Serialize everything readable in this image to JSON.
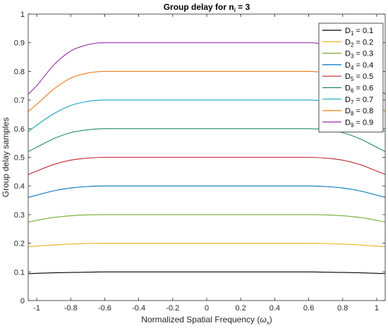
{
  "chart_data": {
    "type": "line",
    "title_text": "Group delay for n",
    "title_sub": "i",
    "title_suffix": " = 3",
    "xlabel_text": "Normalized Spatial Frequency (",
    "xlabel_symbol": "ω",
    "xlabel_sub": "x",
    "xlabel_suffix": ")",
    "ylabel": "Group delay samples",
    "xlim": [
      -1.05,
      1.05
    ],
    "ylim": [
      0,
      1
    ],
    "xticks": [
      "-1",
      "-0.8",
      "-0.6",
      "-0.4",
      "-0.2",
      "0",
      "0.2",
      "0.4",
      "0.6",
      "0.8",
      "1"
    ],
    "xtick_values": [
      -1,
      -0.8,
      -0.6,
      -0.4,
      -0.2,
      0,
      0.2,
      0.4,
      0.6,
      0.8,
      1
    ],
    "yticks": [
      "0",
      "0.1",
      "0.2",
      "0.3",
      "0.4",
      "0.5",
      "0.6",
      "0.7",
      "0.8",
      "0.9",
      "1"
    ],
    "ytick_values": [
      0,
      0.1,
      0.2,
      0.3,
      0.4,
      0.5,
      0.6,
      0.7,
      0.8,
      0.9,
      1
    ],
    "grid": false,
    "legend_position": "top-right",
    "x": [
      -1.05,
      -1.0,
      -0.9,
      -0.8,
      -0.7,
      -0.6,
      -0.5,
      -0.4,
      -0.2,
      0,
      0.2,
      0.4,
      0.5,
      0.6,
      0.7,
      0.8,
      0.9,
      1.0,
      1.05
    ],
    "series": [
      {
        "name": "D",
        "sub": "1",
        "label_value": " = 0.1",
        "color": "#000000",
        "values": [
          0.094,
          0.095,
          0.097,
          0.098,
          0.099,
          0.1,
          0.1,
          0.1,
          0.1,
          0.1,
          0.1,
          0.1,
          0.1,
          0.1,
          0.099,
          0.098,
          0.097,
          0.095,
          0.094
        ]
      },
      {
        "name": "D",
        "sub": "2",
        "label_value": " = 0.2",
        "color": "#EDB120",
        "values": [
          0.188,
          0.19,
          0.194,
          0.197,
          0.199,
          0.2,
          0.2,
          0.2,
          0.2,
          0.2,
          0.2,
          0.2,
          0.2,
          0.2,
          0.199,
          0.197,
          0.194,
          0.19,
          0.188
        ]
      },
      {
        "name": "D",
        "sub": "3",
        "label_value": " = 0.3",
        "color": "#77AC30",
        "values": [
          0.274,
          0.28,
          0.29,
          0.296,
          0.299,
          0.3,
          0.3,
          0.3,
          0.3,
          0.3,
          0.3,
          0.3,
          0.3,
          0.3,
          0.299,
          0.296,
          0.29,
          0.28,
          0.274
        ]
      },
      {
        "name": "D",
        "sub": "4",
        "label_value": " = 0.4",
        "color": "#0072BD",
        "values": [
          0.36,
          0.368,
          0.383,
          0.393,
          0.398,
          0.4,
          0.4,
          0.4,
          0.4,
          0.4,
          0.4,
          0.4,
          0.4,
          0.4,
          0.398,
          0.393,
          0.383,
          0.368,
          0.36
        ]
      },
      {
        "name": "D",
        "sub": "5",
        "label_value": " = 0.5",
        "color": "#C1272D",
        "values": [
          0.44,
          0.452,
          0.475,
          0.49,
          0.497,
          0.5,
          0.5,
          0.5,
          0.5,
          0.5,
          0.5,
          0.5,
          0.5,
          0.5,
          0.497,
          0.49,
          0.475,
          0.452,
          0.44
        ]
      },
      {
        "name": "D",
        "sub": "6",
        "label_value": " = 0.6",
        "color": "#1E8C5A",
        "values": [
          0.52,
          0.535,
          0.565,
          0.586,
          0.596,
          0.6,
          0.6,
          0.6,
          0.6,
          0.6,
          0.6,
          0.6,
          0.6,
          0.6,
          0.596,
          0.586,
          0.565,
          0.535,
          0.52
        ]
      },
      {
        "name": "D",
        "sub": "7",
        "label_value": " = 0.7",
        "color": "#17A3B8",
        "values": [
          0.59,
          0.612,
          0.652,
          0.681,
          0.695,
          0.7,
          0.7,
          0.7,
          0.7,
          0.7,
          0.7,
          0.7,
          0.7,
          0.7,
          0.695,
          0.681,
          0.652,
          0.612,
          0.59
        ]
      },
      {
        "name": "D",
        "sub": "8",
        "label_value": " = 0.8",
        "color": "#F07D1A",
        "values": [
          0.66,
          0.685,
          0.738,
          0.776,
          0.794,
          0.8,
          0.8,
          0.8,
          0.8,
          0.8,
          0.8,
          0.8,
          0.8,
          0.8,
          0.794,
          0.776,
          0.738,
          0.685,
          0.66
        ]
      },
      {
        "name": "D",
        "sub": "9",
        "label_value": " = 0.9",
        "color": "#9B2FAE",
        "values": [
          0.72,
          0.75,
          0.822,
          0.871,
          0.893,
          0.9,
          0.9,
          0.9,
          0.9,
          0.9,
          0.9,
          0.9,
          0.9,
          0.9,
          0.893,
          0.871,
          0.822,
          0.75,
          0.72
        ]
      }
    ]
  }
}
